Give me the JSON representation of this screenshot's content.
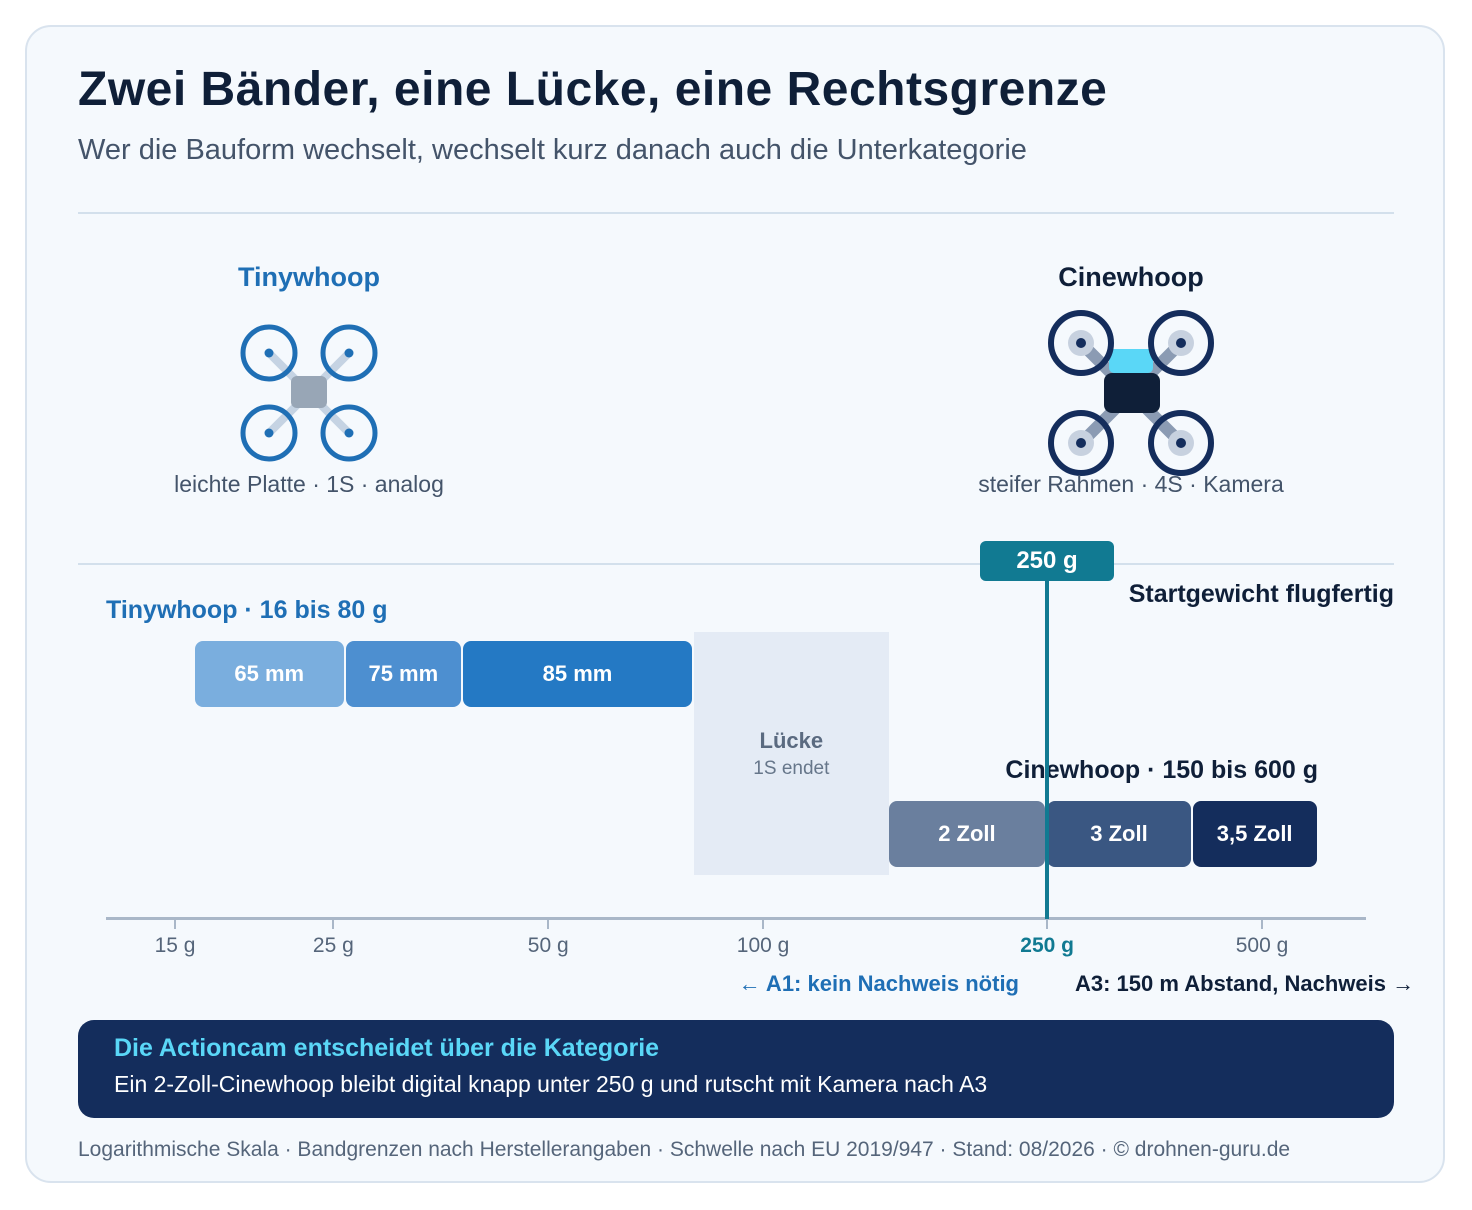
{
  "header": {
    "title": "Zwei Bänder, eine Lücke, eine Rechtsgrenze",
    "subtitle": "Wer die Bauform wechselt, wechselt kurz danach auch die Unterkategorie"
  },
  "drones": {
    "tinywhoop": {
      "name": "Tinywhoop",
      "desc": "leichte Platte · 1S · analog",
      "icon": "tinywhoop-drone-icon"
    },
    "cinewhoop": {
      "name": "Cinewhoop",
      "desc": "steifer Rahmen · 4S · Kamera",
      "icon": "cinewhoop-drone-icon"
    }
  },
  "chart_data": {
    "type": "bar",
    "scale": "log",
    "unit": "g",
    "x_ticks": [
      {
        "value": 15,
        "label": "15 g"
      },
      {
        "value": 25,
        "label": "25 g"
      },
      {
        "value": 50,
        "label": "50 g"
      },
      {
        "value": 100,
        "label": "100 g"
      },
      {
        "value": 250,
        "label": "250 g",
        "highlight": true
      },
      {
        "value": 500,
        "label": "500 g"
      }
    ],
    "bands": [
      {
        "name": "Tinywhoop · 16 bis 80 g",
        "color": "#1f6fb5",
        "segments": [
          {
            "label": "65 mm",
            "start": 16,
            "end": 26,
            "color": "#7aaede"
          },
          {
            "label": "75 mm",
            "start": 26,
            "end": 38,
            "color": "#4d8fd0"
          },
          {
            "label": "85 mm",
            "start": 38,
            "end": 80,
            "color": "#2479c4"
          }
        ]
      },
      {
        "name": "Cinewhoop · 150 bis 600 g",
        "color": "#0f1f38",
        "segments": [
          {
            "label": "2 Zoll",
            "start": 150,
            "end": 250,
            "color": "#6a7f9e"
          },
          {
            "label": "3 Zoll",
            "start": 250,
            "end": 400,
            "color": "#3a5782"
          },
          {
            "label": "3,5 Zoll",
            "start": 400,
            "end": 600,
            "color": "#142d5c"
          }
        ]
      }
    ],
    "gap": {
      "label": "Lücke",
      "sublabel": "1S endet",
      "start": 80,
      "end": 150
    },
    "threshold": {
      "value": 250,
      "label": "250 g",
      "caption": "Startgewicht flugfertig",
      "color": "#117a92"
    },
    "regions": {
      "below": "← A1: kein Nachweis nötig",
      "above": "A3: 150 m Abstand, Nachweis →"
    }
  },
  "callout": {
    "title": "Die Actioncam entscheidet über die Kategorie",
    "body": "Ein 2-Zoll-Cinewhoop bleibt digital knapp unter 250 g und rutscht mit Kamera nach A3"
  },
  "footer": "Logarithmische Skala · Bandgrenzen nach Herstellerangaben · Schwelle nach EU 2019/947 · Stand: 08/2026 · © drohnen-guru.de"
}
